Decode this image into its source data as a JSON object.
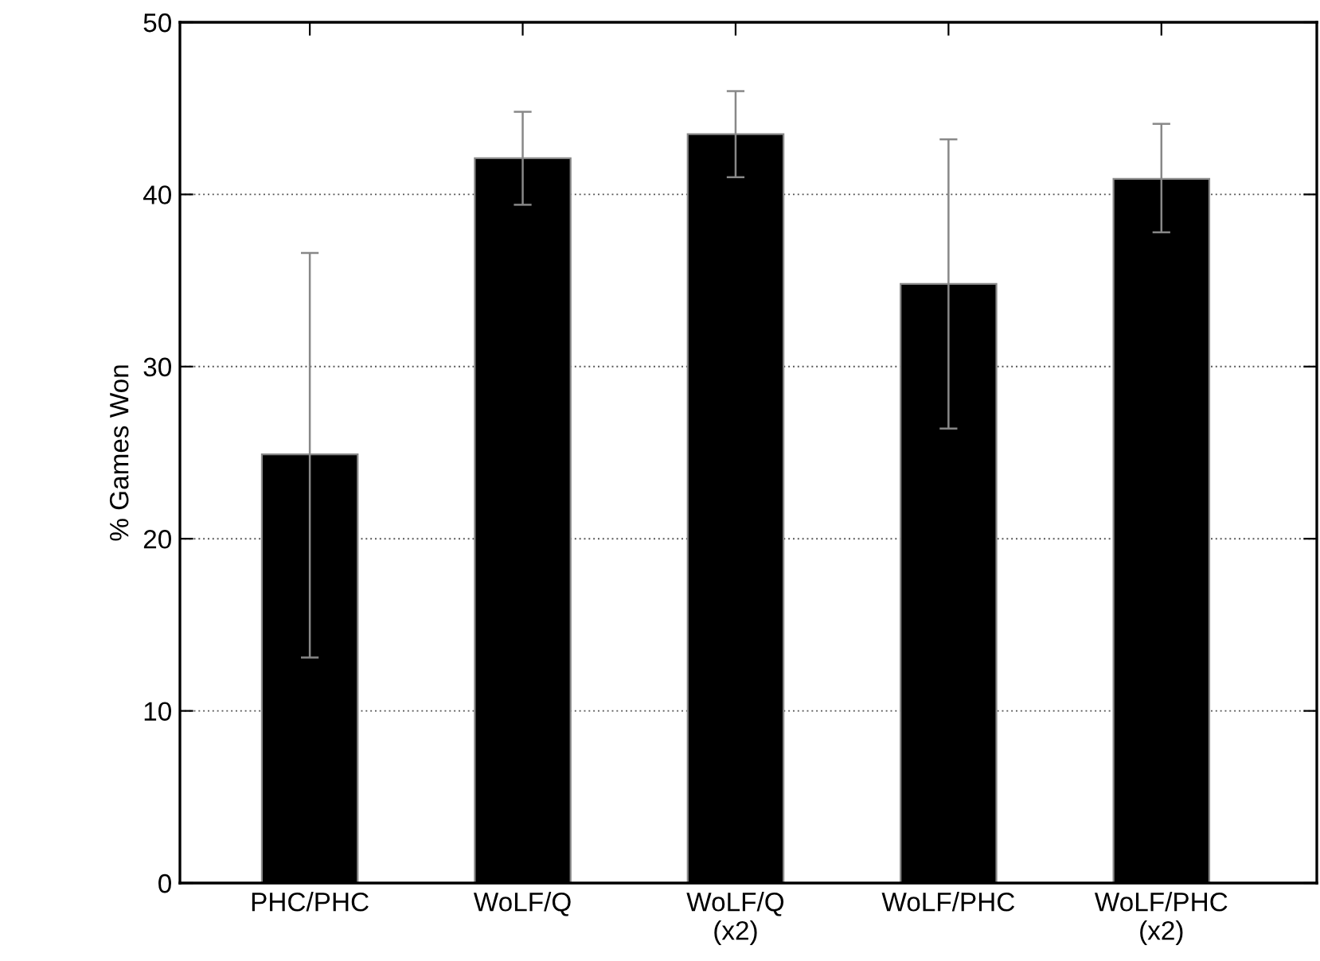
{
  "chart_data": {
    "type": "bar",
    "ylabel": "% Games Won",
    "categories": [
      "PHC/PHC",
      "WoLF/Q",
      "WoLF/Q\n(x2)",
      "WoLF/PHC",
      "WoLF/PHC\n(x2)"
    ],
    "values": [
      24.9,
      42.1,
      43.5,
      34.8,
      40.9
    ],
    "errors": [
      [
        13.1,
        36.6
      ],
      [
        39.4,
        44.8
      ],
      [
        41.0,
        46.0
      ],
      [
        26.4,
        43.2
      ],
      [
        37.8,
        44.1
      ]
    ],
    "color": "#000000",
    "ylim": [
      0,
      50
    ],
    "yticks": [
      0,
      10,
      20,
      30,
      40,
      50
    ],
    "grid": "y"
  }
}
